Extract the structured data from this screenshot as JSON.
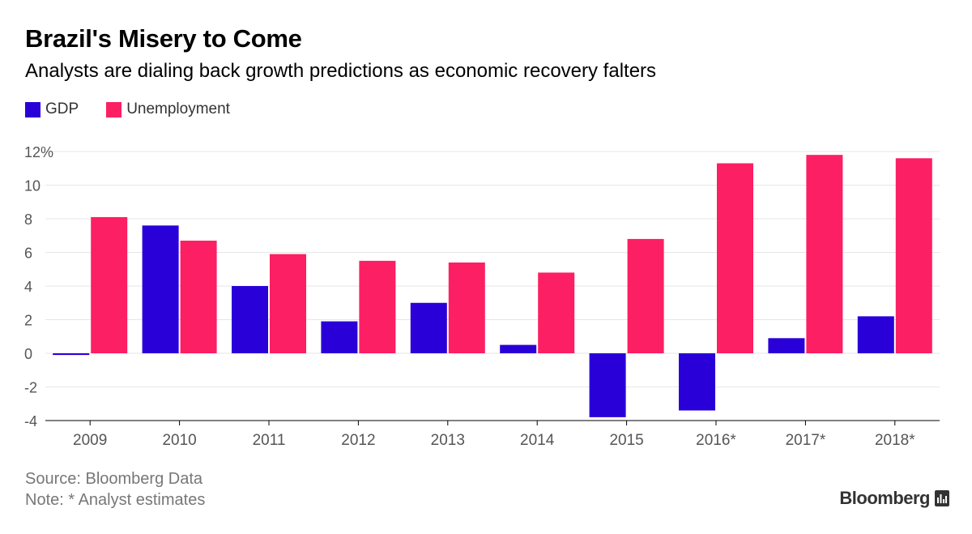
{
  "header": {
    "title": "Brazil's Misery to Come",
    "subtitle": "Analysts are dialing back growth predictions as economic recovery falters"
  },
  "legend": [
    {
      "label": "GDP",
      "color": "#2a00d8"
    },
    {
      "label": "Unemployment",
      "color": "#fc1f64"
    }
  ],
  "footer": {
    "source": "Source: Bloomberg Data",
    "note": "Note: * Analyst estimates",
    "brand": "Bloomberg"
  },
  "chart_data": {
    "type": "bar",
    "categories": [
      "2009",
      "2010",
      "2011",
      "2012",
      "2013",
      "2014",
      "2015",
      "2016*",
      "2017*",
      "2018*"
    ],
    "series": [
      {
        "name": "GDP",
        "color": "#2a00d8",
        "values": [
          -0.1,
          7.6,
          4.0,
          1.9,
          3.0,
          0.5,
          -3.8,
          -3.4,
          0.9,
          2.2
        ]
      },
      {
        "name": "Unemployment",
        "color": "#fc1f64",
        "values": [
          8.1,
          6.7,
          5.9,
          5.5,
          5.4,
          4.8,
          6.8,
          11.3,
          11.8,
          11.6
        ]
      }
    ],
    "y_ticks": [
      "12%",
      "10",
      "8",
      "6",
      "4",
      "2",
      "0",
      "-2",
      "-4"
    ],
    "y_tick_values": [
      12,
      10,
      8,
      6,
      4,
      2,
      0,
      -2,
      -4
    ],
    "ylim": [
      -4,
      12
    ],
    "grid": true,
    "legend_position": "top-left"
  }
}
